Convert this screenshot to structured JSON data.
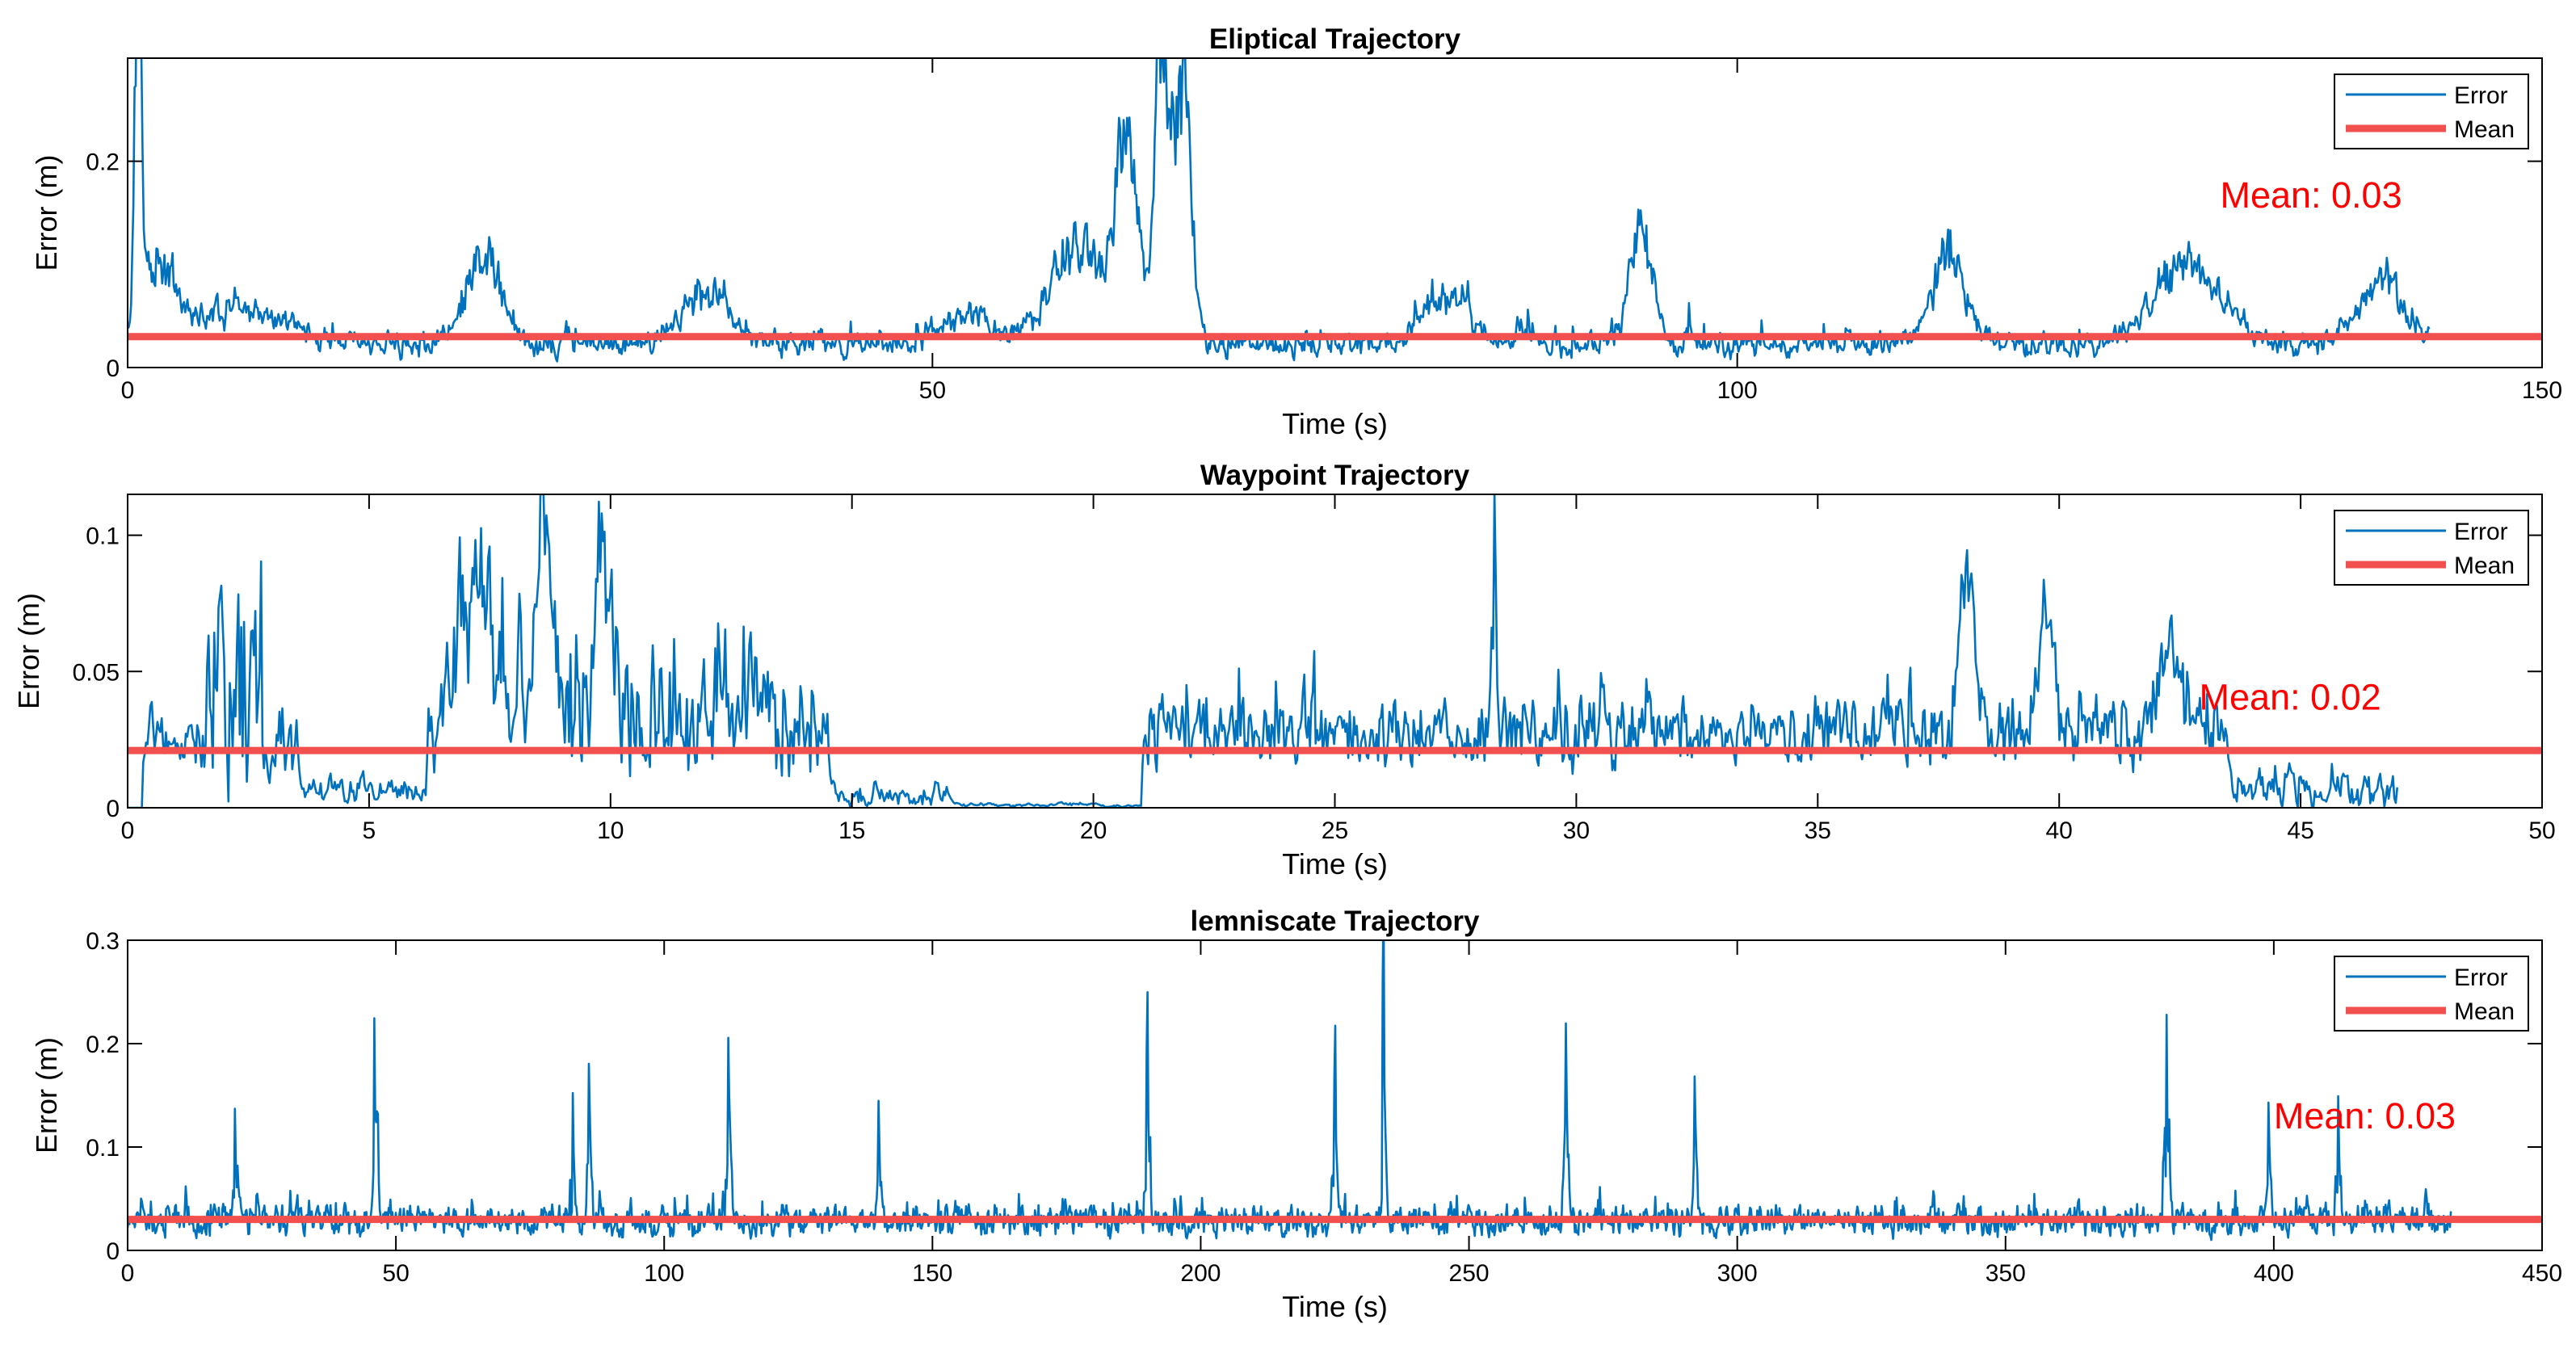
{
  "figure": {
    "background": "#ffffff"
  },
  "colors": {
    "error": "#0072BD",
    "mean": "#F24F4F",
    "axis": "#000000",
    "annotation": "#FF0000"
  },
  "chart_data": [
    {
      "type": "line",
      "title": "Eliptical Trajectory",
      "xlabel": "Time (s)",
      "ylabel": "Error (m)",
      "xlim": [
        0,
        150
      ],
      "ylim": [
        0,
        0.3
      ],
      "xticks": [
        0,
        50,
        100,
        150
      ],
      "xtick_labels": [
        "0",
        "50",
        "100",
        "150"
      ],
      "yticks": [
        0,
        0.2
      ],
      "ytick_labels": [
        "0",
        "0.2"
      ],
      "duration": 143,
      "legend": [
        "Error",
        "Mean"
      ],
      "legend_location": "top-right",
      "mean": 0.03,
      "annotation": "Mean: 0.03",
      "annotation_anchor": {
        "x": 130,
        "y": 0.155
      },
      "signal": {
        "n": 2000,
        "seed": 11,
        "base": 0.022,
        "noise": 0.012,
        "jitter": 0.55,
        "bumps": [
          {
            "t": 0.6,
            "h": 0.26,
            "w": 0.25
          },
          {
            "t": 1.8,
            "h": 0.05,
            "w": 1.5
          },
          {
            "t": 7,
            "h": 0.025,
            "w": 4
          },
          {
            "t": 22,
            "h": 0.06,
            "w": 1.5
          },
          {
            "t": 36,
            "h": 0.035,
            "w": 2
          },
          {
            "t": 52,
            "h": 0.02,
            "w": 2
          },
          {
            "t": 59,
            "h": 0.06,
            "w": 2.5
          },
          {
            "t": 62,
            "h": 0.12,
            "w": 1
          },
          {
            "t": 64.2,
            "h": 0.19,
            "w": 0.6
          },
          {
            "t": 65.5,
            "h": 0.15,
            "w": 0.8
          },
          {
            "t": 82,
            "h": 0.03,
            "w": 2
          },
          {
            "t": 94,
            "h": 0.07,
            "w": 1
          },
          {
            "t": 113,
            "h": 0.06,
            "w": 1.5
          },
          {
            "t": 128,
            "h": 0.05,
            "w": 3
          },
          {
            "t": 140,
            "h": 0.04,
            "w": 2
          }
        ],
        "spikes": [
          {
            "t": 97,
            "h": 0.03
          },
          {
            "t": 87,
            "h": 0.035
          }
        ]
      }
    },
    {
      "type": "line",
      "title": "Waypoint Trajectory",
      "xlabel": "Time (s)",
      "ylabel": "Error (m)",
      "xlim": [
        0,
        50
      ],
      "ylim": [
        0,
        0.115
      ],
      "xticks": [
        0,
        5,
        10,
        15,
        20,
        25,
        30,
        35,
        40,
        45,
        50
      ],
      "xtick_labels": [
        "0",
        "5",
        "10",
        "15",
        "20",
        "25",
        "30",
        "35",
        "40",
        "45",
        "50"
      ],
      "yticks": [
        0,
        0.05,
        0.1
      ],
      "ytick_labels": [
        "0",
        "0.05",
        "0.1"
      ],
      "duration": 47,
      "legend": [
        "Error",
        "Mean"
      ],
      "legend_location": "top-right",
      "mean": 0.021,
      "annotation": "Mean: 0.02",
      "annotation_anchor": {
        "x": 42.9,
        "y": 0.036
      },
      "signal": {
        "n": 1600,
        "seed": 23,
        "base": 0.0,
        "noise": 0.0,
        "jitter": 0.0,
        "segments": [
          {
            "t0": 0.3,
            "t1": 1.5,
            "base": 0.025,
            "noise": 0.01,
            "jitter": 0.6
          },
          {
            "t0": 1.5,
            "t1": 2.8,
            "base": 0.05,
            "noise": 0.045,
            "jitter": 0.7
          },
          {
            "t0": 2.8,
            "t1": 3.5,
            "base": 0.025,
            "noise": 0.015,
            "jitter": 0.6
          },
          {
            "t0": 3.5,
            "t1": 6.2,
            "base": 0.006,
            "noise": 0.005,
            "jitter": 0.5
          },
          {
            "t0": 6.2,
            "t1": 14.5,
            "base": 0.032,
            "noise": 0.02,
            "jitter": 0.7
          },
          {
            "t0": 14.5,
            "t1": 17,
            "base": 0.004,
            "noise": 0.004,
            "jitter": 0.5
          },
          {
            "t0": 17,
            "t1": 21,
            "base": 0.001,
            "noise": 0.0008,
            "jitter": 0.3
          },
          {
            "t0": 21,
            "t1": 43.5,
            "base": 0.027,
            "noise": 0.012,
            "jitter": 0.7
          },
          {
            "t0": 43.5,
            "t1": 47.1,
            "base": 0.006,
            "noise": 0.007,
            "jitter": 0.6
          }
        ],
        "bumps": [
          {
            "t": 7.2,
            "h": 0.04,
            "w": 0.4
          },
          {
            "t": 8.6,
            "h": 0.065,
            "w": 0.2
          },
          {
            "t": 9.8,
            "h": 0.055,
            "w": 0.2
          },
          {
            "t": 38.1,
            "h": 0.05,
            "w": 0.2
          },
          {
            "t": 39.7,
            "h": 0.045,
            "w": 0.2
          },
          {
            "t": 42.3,
            "h": 0.03,
            "w": 0.3
          }
        ],
        "spikes": [
          {
            "t": 28.3,
            "h": 0.085
          },
          {
            "t": 30.5,
            "h": 0.03
          }
        ]
      }
    },
    {
      "type": "line",
      "title": "lemniscate Trajectory",
      "xlabel": "Time (s)",
      "ylabel": "Error (m)",
      "xlim": [
        0,
        450
      ],
      "ylim": [
        0,
        0.3
      ],
      "xticks": [
        0,
        50,
        100,
        150,
        200,
        250,
        300,
        350,
        400,
        450
      ],
      "xtick_labels": [
        "0",
        "50",
        "100",
        "150",
        "200",
        "250",
        "300",
        "350",
        "400",
        "450"
      ],
      "yticks": [
        0,
        0.1,
        0.2,
        0.3
      ],
      "ytick_labels": [
        "0",
        "0.1",
        "0.2",
        "0.3"
      ],
      "duration": 433,
      "legend": [
        "Error",
        "Mean"
      ],
      "legend_location": "top-right",
      "mean": 0.03,
      "annotation": "Mean: 0.03",
      "annotation_anchor": {
        "x": 400,
        "y": 0.118
      },
      "signal": {
        "n": 2600,
        "seed": 37,
        "base": 0.028,
        "noise": 0.015,
        "jitter": 0.6,
        "bumps": [],
        "spikes": [
          {
            "t": 46,
            "h": 0.19
          },
          {
            "t": 83,
            "h": 0.13
          },
          {
            "t": 86,
            "h": 0.14
          },
          {
            "t": 112,
            "h": 0.15
          },
          {
            "t": 190,
            "h": 0.16
          },
          {
            "t": 225,
            "h": 0.13
          },
          {
            "t": 234,
            "h": 0.23
          },
          {
            "t": 268,
            "h": 0.15
          },
          {
            "t": 292,
            "h": 0.13
          },
          {
            "t": 380,
            "h": 0.19
          },
          {
            "t": 399,
            "h": 0.09
          },
          {
            "t": 412,
            "h": 0.1
          },
          {
            "t": 140,
            "h": 0.1
          },
          {
            "t": 20,
            "h": 0.09
          }
        ]
      }
    }
  ]
}
